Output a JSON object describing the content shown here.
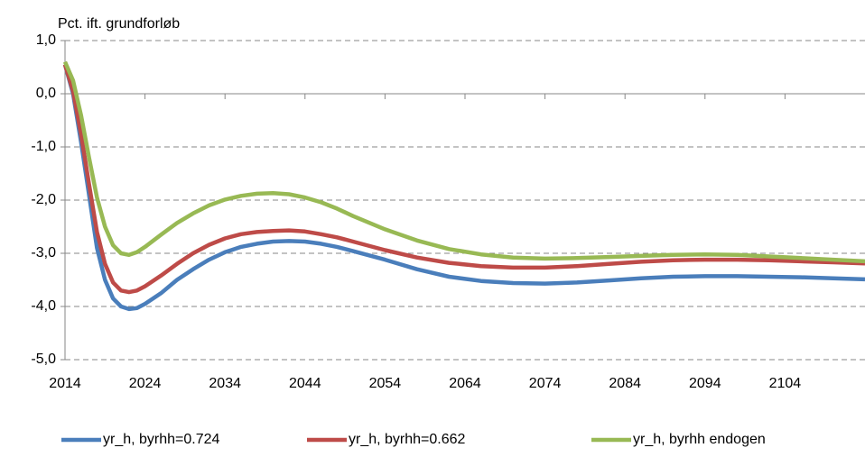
{
  "chart_data": {
    "type": "line",
    "y_axis_label": "Pct. ift. grundforløb",
    "x": [
      2014,
      2015,
      2016,
      2017,
      2018,
      2019,
      2020,
      2021,
      2022,
      2023,
      2024,
      2026,
      2028,
      2030,
      2032,
      2034,
      2036,
      2038,
      2040,
      2042,
      2044,
      2046,
      2048,
      2050,
      2054,
      2058,
      2062,
      2066,
      2070,
      2074,
      2078,
      2082,
      2086,
      2090,
      2094,
      2098,
      2102,
      2106,
      2110,
      2114
    ],
    "series": [
      {
        "name": "yr_h, byrhh=0.724",
        "color": "#4a7ebb",
        "values": [
          0.55,
          0.0,
          -0.9,
          -1.9,
          -2.9,
          -3.5,
          -3.85,
          -4.0,
          -4.05,
          -4.03,
          -3.95,
          -3.75,
          -3.5,
          -3.3,
          -3.12,
          -2.98,
          -2.88,
          -2.82,
          -2.78,
          -2.77,
          -2.78,
          -2.82,
          -2.88,
          -2.96,
          -3.12,
          -3.3,
          -3.44,
          -3.52,
          -3.56,
          -3.57,
          -3.55,
          -3.51,
          -3.47,
          -3.44,
          -3.43,
          -3.43,
          -3.44,
          -3.45,
          -3.47,
          -3.49
        ]
      },
      {
        "name": "yr_h, byrhh=0.662",
        "color": "#be4b48",
        "values": [
          0.55,
          0.05,
          -0.75,
          -1.7,
          -2.6,
          -3.2,
          -3.55,
          -3.7,
          -3.73,
          -3.7,
          -3.62,
          -3.42,
          -3.2,
          -3.0,
          -2.84,
          -2.72,
          -2.64,
          -2.6,
          -2.58,
          -2.57,
          -2.59,
          -2.64,
          -2.7,
          -2.78,
          -2.94,
          -3.08,
          -3.18,
          -3.24,
          -3.27,
          -3.27,
          -3.24,
          -3.2,
          -3.16,
          -3.13,
          -3.12,
          -3.12,
          -3.13,
          -3.15,
          -3.17,
          -3.19
        ]
      },
      {
        "name": "yr_h, byrhh endogen",
        "color": "#98b954",
        "values": [
          0.6,
          0.25,
          -0.4,
          -1.2,
          -1.95,
          -2.5,
          -2.85,
          -3.0,
          -3.03,
          -2.98,
          -2.88,
          -2.65,
          -2.43,
          -2.25,
          -2.1,
          -1.99,
          -1.92,
          -1.88,
          -1.87,
          -1.89,
          -1.95,
          -2.04,
          -2.16,
          -2.3,
          -2.55,
          -2.76,
          -2.92,
          -3.02,
          -3.08,
          -3.1,
          -3.09,
          -3.07,
          -3.05,
          -3.03,
          -3.02,
          -3.03,
          -3.06,
          -3.09,
          -3.12,
          -3.15
        ]
      }
    ],
    "xlim": [
      2014,
      2114
    ],
    "xticks": [
      2014,
      2024,
      2034,
      2044,
      2054,
      2064,
      2074,
      2084,
      2094,
      2104
    ],
    "ylim": [
      -5,
      1
    ],
    "yticks": [
      {
        "value": -5,
        "label": "-5,0"
      },
      {
        "value": -4,
        "label": "-4,0"
      },
      {
        "value": -3,
        "label": "-3,0"
      },
      {
        "value": -2,
        "label": "-2,0"
      },
      {
        "value": -1,
        "label": "-1,0"
      },
      {
        "value": 0,
        "label": "0,0"
      },
      {
        "value": 1,
        "label": "1,0"
      }
    ],
    "grid": true,
    "legend": "bottom"
  }
}
